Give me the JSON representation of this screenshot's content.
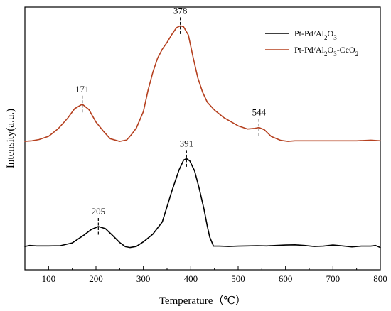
{
  "chart_data": {
    "type": "line",
    "xlabel": "Temperature（℃）",
    "ylabel": "Intensity(a.u.)",
    "xlim": [
      50,
      800
    ],
    "xticks": [
      "100",
      "200",
      "300",
      "400",
      "500",
      "600",
      "700",
      "800"
    ],
    "grid": false,
    "legend_position": "top-right",
    "series": [
      {
        "name": "Pt-Pd/Al2O3",
        "legend_html": "Pt-Pd/Al<tspan baseline-shift=\"sub\" font-size=\"9\">2</tspan>O<tspan baseline-shift=\"sub\" font-size=\"9\">3</tspan>",
        "color": "#000000",
        "x": [
          50,
          60,
          75,
          100,
          125,
          150,
          175,
          190,
          205,
          220,
          235,
          250,
          262,
          272,
          285,
          300,
          320,
          340,
          360,
          375,
          385,
          391,
          398,
          408,
          418,
          428,
          435,
          440,
          448,
          460,
          480,
          500,
          520,
          540,
          560,
          580,
          600,
          620,
          640,
          660,
          680,
          700,
          720,
          740,
          760,
          780,
          790,
          800
        ],
        "y": [
          1.1,
          1.6,
          1.4,
          1.4,
          1.5,
          2.8,
          6.6,
          9.2,
          10.6,
          9.6,
          6.4,
          3.0,
          1.0,
          0.6,
          1.1,
          3.3,
          7.0,
          12.8,
          27.4,
          37.4,
          42.2,
          42.9,
          41.8,
          37.1,
          28.6,
          18.8,
          10.6,
          5.6,
          1.3,
          1.3,
          1.1,
          1.3,
          1.4,
          1.5,
          1.4,
          1.6,
          1.8,
          1.9,
          1.6,
          1.1,
          1.3,
          1.8,
          1.4,
          0.9,
          1.3,
          1.3,
          1.6,
          0.6
        ]
      },
      {
        "name": "Pt-Pd/Al2O3-CeO2",
        "legend_html": "Pt-Pd/Al<tspan baseline-shift=\"sub\" font-size=\"9\">2</tspan>O<tspan baseline-shift=\"sub\" font-size=\"9\">3</tspan>-CeO<tspan baseline-shift=\"sub\" font-size=\"9\">2</tspan>",
        "color": "#b5401f",
        "x": [
          50,
          65,
          80,
          100,
          120,
          140,
          155,
          171,
          185,
          200,
          215,
          230,
          250,
          265,
          275,
          285,
          300,
          310,
          320,
          330,
          340,
          350,
          360,
          370,
          378,
          385,
          395,
          405,
          415,
          425,
          435,
          450,
          470,
          500,
          520,
          535,
          544,
          555,
          570,
          590,
          605,
          620,
          650,
          700,
          750,
          780,
          800
        ],
        "y": [
          51.1,
          51.4,
          52.0,
          53.5,
          57.1,
          62.1,
          66.7,
          68.8,
          66.3,
          60.3,
          56.1,
          52.4,
          51.1,
          51.8,
          54.4,
          57.4,
          65.3,
          75.5,
          84.0,
          90.7,
          95.0,
          98.2,
          102.0,
          105.2,
          106.1,
          105.6,
          101.7,
          91.0,
          81.3,
          74.5,
          69.7,
          66.0,
          62.4,
          58.5,
          57.0,
          57.3,
          57.7,
          56.7,
          53.4,
          51.6,
          51.1,
          51.4,
          51.4,
          51.4,
          51.4,
          51.7,
          51.4
        ]
      }
    ],
    "annotations": [
      {
        "series": 0,
        "text": "205",
        "x": 205
      },
      {
        "series": 0,
        "text": "391",
        "x": 391
      },
      {
        "series": 1,
        "text": "171",
        "x": 171
      },
      {
        "series": 1,
        "text": "378",
        "x": 378
      },
      {
        "series": 1,
        "text": "544",
        "x": 544
      }
    ]
  }
}
